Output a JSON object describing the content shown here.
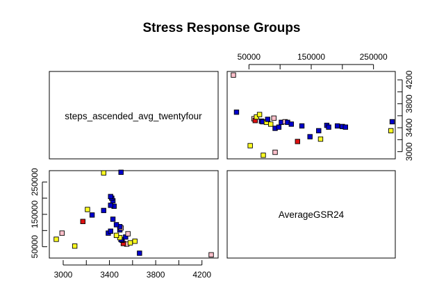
{
  "chart_data": {
    "type": "scatter",
    "title": "Stress Response Groups",
    "variables": [
      "steps_ascended_avg_twentyfour",
      "AverageGSR24"
    ],
    "colors": {
      "red": "#dd1111",
      "blue": "#0000cc",
      "yellow": "#ffff22",
      "pink": "#ffc0cb"
    },
    "steps_axis": {
      "range": [
        15000,
        285000
      ],
      "ticks": [
        50000,
        150000,
        250000
      ],
      "tick_labels": [
        "50000",
        "150000",
        "250000"
      ]
    },
    "gsr_axis": {
      "range": [
        2880,
        4340
      ],
      "ticks": [
        3000,
        3400,
        3800,
        4200
      ],
      "tick_labels": [
        "3000",
        "3400",
        "3800",
        "4200"
      ]
    },
    "points": [
      {
        "steps": 25000,
        "gsr": 4280,
        "color": "pink"
      },
      {
        "steps": 30000,
        "gsr": 3660,
        "color": "blue"
      },
      {
        "steps": 58000,
        "gsr": 3550,
        "color": "pink"
      },
      {
        "steps": 60000,
        "gsr": 3520,
        "color": "red"
      },
      {
        "steps": 62000,
        "gsr": 3580,
        "color": "yellow"
      },
      {
        "steps": 67000,
        "gsr": 3620,
        "color": "yellow"
      },
      {
        "steps": 70000,
        "gsr": 3510,
        "color": "blue"
      },
      {
        "steps": 72000,
        "gsr": 3500,
        "color": "blue"
      },
      {
        "steps": 78000,
        "gsr": 3490,
        "color": "yellow"
      },
      {
        "steps": 80000,
        "gsr": 3540,
        "color": "blue"
      },
      {
        "steps": 85000,
        "gsr": 3460,
        "color": "yellow"
      },
      {
        "steps": 90000,
        "gsr": 3560,
        "color": "pink"
      },
      {
        "steps": 92000,
        "gsr": 3390,
        "color": "blue"
      },
      {
        "steps": 98000,
        "gsr": 3410,
        "color": "blue"
      },
      {
        "steps": 102000,
        "gsr": 3490,
        "color": "blue"
      },
      {
        "steps": 108000,
        "gsr": 3500,
        "color": "pink"
      },
      {
        "steps": 112000,
        "gsr": 3490,
        "color": "blue"
      },
      {
        "steps": 118000,
        "gsr": 3460,
        "color": "blue"
      },
      {
        "steps": 128000,
        "gsr": 3170,
        "color": "red"
      },
      {
        "steps": 135000,
        "gsr": 3430,
        "color": "blue"
      },
      {
        "steps": 148000,
        "gsr": 3250,
        "color": "blue"
      },
      {
        "steps": 162000,
        "gsr": 3350,
        "color": "blue"
      },
      {
        "steps": 165000,
        "gsr": 3210,
        "color": "yellow"
      },
      {
        "steps": 175000,
        "gsr": 3440,
        "color": "blue"
      },
      {
        "steps": 178000,
        "gsr": 3410,
        "color": "blue"
      },
      {
        "steps": 192000,
        "gsr": 3430,
        "color": "blue"
      },
      {
        "steps": 200000,
        "gsr": 3420,
        "color": "blue"
      },
      {
        "steps": 205000,
        "gsr": 3410,
        "color": "blue"
      },
      {
        "steps": 280000,
        "gsr": 3500,
        "color": "blue"
      },
      {
        "steps": 278000,
        "gsr": 3350,
        "color": "yellow"
      },
      {
        "steps": 52000,
        "gsr": 3100,
        "color": "yellow"
      },
      {
        "steps": 92000,
        "gsr": 2990,
        "color": "pink"
      },
      {
        "steps": 73000,
        "gsr": 2940,
        "color": "yellow"
      }
    ]
  }
}
